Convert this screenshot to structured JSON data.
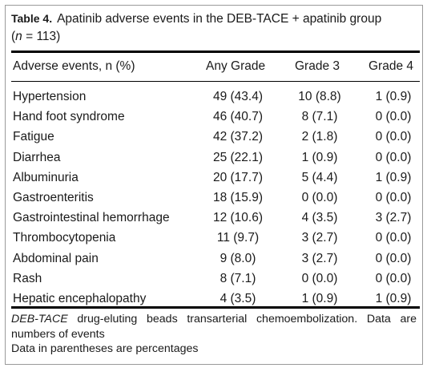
{
  "caption": {
    "label": "Table 4.",
    "text": "Apatinib adverse events in the DEB-TACE + apatinib group",
    "n_var": "n",
    "n_value": " = 113)"
  },
  "header": [
    "Adverse events, n (%)",
    "Any Grade",
    "Grade 3",
    "Grade 4"
  ],
  "rows": [
    {
      "event": "Hypertension",
      "any": "49 (43.4)",
      "g3": "10 (8.8)",
      "g4": "1 (0.9)"
    },
    {
      "event": "Hand foot syndrome",
      "any": "46 (40.7)",
      "g3": "8 (7.1)",
      "g4": "0 (0.0)"
    },
    {
      "event": "Fatigue",
      "any": "42 (37.2)",
      "g3": "2 (1.8)",
      "g4": "0 (0.0)"
    },
    {
      "event": "Diarrhea",
      "any": "25 (22.1)",
      "g3": "1 (0.9)",
      "g4": "0 (0.0)"
    },
    {
      "event": "Albuminuria",
      "any": "20 (17.7)",
      "g3": "5 (4.4)",
      "g4": "1 (0.9)"
    },
    {
      "event": "Gastroenteritis",
      "any": "18 (15.9)",
      "g3": "0 (0.0)",
      "g4": "0 (0.0)"
    },
    {
      "event": "Gastrointestinal hemorrhage",
      "any": "12 (10.6)",
      "g3": "4 (3.5)",
      "g4": "3 (2.7)"
    },
    {
      "event": "Thrombocytopenia",
      "any": "11 (9.7)",
      "g3": "3 (2.7)",
      "g4": "0 (0.0)"
    },
    {
      "event": "Abdominal pain",
      "any": "9 (8.0)",
      "g3": "3 (2.7)",
      "g4": "0 (0.0)"
    },
    {
      "event": "Rash",
      "any": "8 (7.1)",
      "g3": "0 (0.0)",
      "g4": "0 (0.0)"
    },
    {
      "event": "Hepatic encephalopathy",
      "any": "4 (3.5)",
      "g3": "1 (0.9)",
      "g4": "1 (0.9)"
    }
  ],
  "footnote": {
    "abbr": "DEB-TACE",
    "line1": " drug-eluting beads transarterial chemoembolization. Data are numbers of events",
    "line2": "Data in parentheses are percentages"
  }
}
